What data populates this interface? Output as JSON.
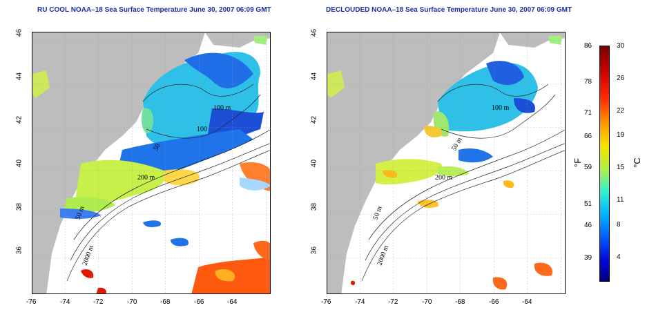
{
  "panels": [
    {
      "title": "RU COOL NOAA–18 Sea Surface Temperature June 30, 2007 06:09 GMT"
    },
    {
      "title": "DECLOUDED NOAA–18 Sea Surface Temperature June 30, 2007 06:09 GMT"
    }
  ],
  "axes": {
    "lon_ticks": [
      "-76",
      "-74",
      "-72",
      "-70",
      "-68",
      "-66",
      "-64"
    ],
    "lat_ticks": [
      "46",
      "44",
      "42",
      "40",
      "38",
      "36"
    ]
  },
  "contour_labels": {
    "panel1": [
      "100 m",
      "100",
      "50",
      "200 m",
      "2000 m",
      "50 m"
    ],
    "panel2": [
      "100 m",
      "50 m",
      "200 m",
      "2000 m",
      "50 m"
    ]
  },
  "colorbar": {
    "fahrenheit_label": "°F",
    "celsius_label": "°C",
    "fahrenheit_ticks": [
      "86",
      "78",
      "71",
      "66",
      "59",
      "51",
      "46",
      "39"
    ],
    "celsius_ticks": [
      "30",
      "26",
      "22",
      "19",
      "15",
      "11",
      "8",
      "4"
    ]
  },
  "colors": {
    "land": "#bdbdbd",
    "title": "#1a2fa0",
    "no_data": "#ffffff"
  }
}
